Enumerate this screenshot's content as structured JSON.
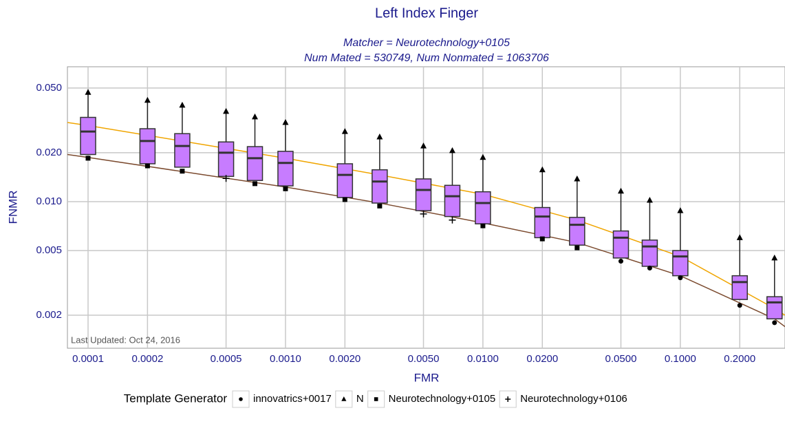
{
  "chart_data": {
    "type": "box",
    "title": "Left Index Finger",
    "subtitle": [
      "Matcher = Neurotechnology+0105",
      "Num Mated = 530749, Num Nonmated = 1063706"
    ],
    "x_label": "FMR",
    "y_label": "FNMR",
    "annotation": "Last Updated: Oct 24, 2016",
    "legend_title": "Template Generator",
    "x": [
      0.0001,
      0.0002,
      0.0003,
      0.0005,
      0.0007,
      0.001,
      0.002,
      0.003,
      0.005,
      0.007,
      0.01,
      0.02,
      0.03,
      0.05,
      0.07,
      0.1,
      0.2,
      0.3
    ],
    "boxes": {
      "color": "#c77cff",
      "q1": [
        0.0195,
        0.0171,
        0.0163,
        0.0143,
        0.0135,
        0.0125,
        0.0106,
        0.0098,
        0.0088,
        0.0081,
        0.0073,
        0.006,
        0.0054,
        0.0045,
        0.004,
        0.0035,
        0.0025,
        0.0019
      ],
      "median": [
        0.027,
        0.0236,
        0.022,
        0.02,
        0.0185,
        0.0173,
        0.0146,
        0.0133,
        0.0118,
        0.0108,
        0.0098,
        0.0081,
        0.0072,
        0.006,
        0.0053,
        0.0046,
        0.0032,
        0.0024
      ],
      "q3": [
        0.033,
        0.0281,
        0.0262,
        0.0233,
        0.0218,
        0.0204,
        0.0171,
        0.0157,
        0.0138,
        0.0126,
        0.0115,
        0.0092,
        0.008,
        0.0066,
        0.0058,
        0.005,
        0.0035,
        0.0026
      ]
    },
    "series": [
      {
        "name": "innovatrics+0017",
        "marker": "circle",
        "values": [
          null,
          null,
          null,
          null,
          null,
          null,
          null,
          null,
          null,
          null,
          null,
          null,
          null,
          0.0043,
          0.0039,
          0.0034,
          0.0023,
          0.0018
        ]
      },
      {
        "name": "N",
        "marker": "triangle",
        "values": [
          0.047,
          0.042,
          0.0392,
          0.0359,
          0.0332,
          0.0307,
          0.027,
          0.025,
          0.022,
          0.0206,
          0.0187,
          0.0157,
          0.0138,
          0.0116,
          0.0102,
          0.0088,
          0.006,
          0.0045
        ]
      },
      {
        "name": "Neurotechnology+0105",
        "marker": "square",
        "values": [
          0.0185,
          0.0166,
          0.0154,
          null,
          0.0129,
          0.012,
          0.0103,
          0.0094,
          null,
          null,
          0.0071,
          0.0059,
          0.0052,
          null,
          null,
          null,
          null,
          null
        ]
      },
      {
        "name": "Neurotechnology+0106",
        "marker": "plus",
        "values": [
          null,
          null,
          null,
          0.0139,
          null,
          null,
          null,
          null,
          0.0084,
          0.0077,
          null,
          null,
          null,
          null,
          null,
          null,
          null,
          null
        ]
      }
    ],
    "lines": [
      {
        "color": "#f0a500",
        "x": [
          7.86e-05,
          0.0001,
          0.001,
          0.003,
          0.01,
          0.03,
          0.1,
          0.3,
          0.339
        ],
        "values": [
          0.0307,
          0.0294,
          0.0185,
          0.0146,
          0.0111,
          0.0077,
          0.0046,
          0.0022,
          0.002
        ]
      },
      {
        "color": "#7b4a2e",
        "x": [
          7.86e-05,
          0.0001,
          0.001,
          0.003,
          0.01,
          0.03,
          0.1,
          0.3,
          0.339
        ],
        "values": [
          0.0195,
          0.0187,
          0.0123,
          0.0098,
          0.0074,
          0.0056,
          0.0035,
          0.0019,
          0.0017
        ]
      }
    ],
    "xlog": true,
    "ylog": true,
    "grid": true,
    "xlim": [
      7.86e-05,
      0.339
    ],
    "ylim": [
      0.001253,
      0.0676
    ],
    "xticks": [
      0.0001,
      0.0002,
      0.0005,
      {
        "value": 0.001,
        "label": "0.0010"
      },
      {
        "value": 0.002,
        "label": "0.0020"
      },
      {
        "value": 0.005,
        "label": "0.0050"
      },
      {
        "value": 0.01,
        "label": "0.0100"
      },
      {
        "value": 0.02,
        "label": "0.0200"
      },
      {
        "value": 0.05,
        "label": "0.0500"
      },
      {
        "value": 0.1,
        "label": "0.1000"
      },
      {
        "value": 0.2,
        "label": "0.2000"
      }
    ],
    "yticks": [
      {
        "value": 0.05,
        "label": "0.050"
      },
      {
        "value": 0.02,
        "label": "0.020"
      },
      {
        "value": 0.01,
        "label": "0.010"
      },
      0.005,
      0.002
    ],
    "legend_position": "bottom"
  }
}
